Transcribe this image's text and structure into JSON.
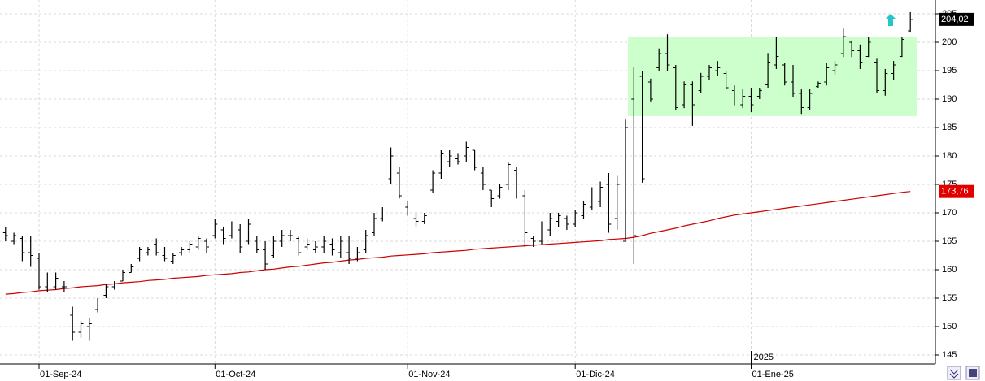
{
  "chart_data": {
    "type": "ohlc",
    "ylim": [
      143.43,
      207.43
    ],
    "yticks": [
      145,
      150,
      155,
      160,
      165,
      170,
      175,
      180,
      185,
      190,
      195,
      200,
      205
    ],
    "grid": true,
    "color": "#000000",
    "categories": [
      null,
      null,
      null,
      null,
      "01-Sep-24",
      null,
      null,
      null,
      null,
      null,
      null,
      null,
      null,
      null,
      null,
      null,
      null,
      null,
      null,
      null,
      null,
      null,
      null,
      null,
      null,
      "01-Oct-24",
      null,
      null,
      null,
      null,
      null,
      null,
      null,
      null,
      null,
      null,
      null,
      null,
      null,
      null,
      null,
      null,
      null,
      null,
      null,
      null,
      null,
      null,
      "01-Nov-24",
      null,
      null,
      null,
      null,
      null,
      null,
      null,
      null,
      null,
      null,
      null,
      null,
      null,
      null,
      null,
      null,
      null,
      null,
      null,
      "01-Dic-24",
      null,
      null,
      null,
      null,
      null,
      null,
      null,
      null,
      null,
      null,
      null,
      null,
      null,
      null,
      null,
      null,
      null,
      null,
      null,
      null,
      "01-Ene-25",
      null,
      null,
      null,
      null,
      null,
      null,
      null,
      null,
      null,
      null,
      null,
      null,
      null,
      null,
      null,
      null,
      null,
      null,
      null
    ],
    "open": [
      166.5,
      165,
      165.5,
      163,
      162,
      157,
      157,
      157,
      152,
      149,
      150,
      153,
      155.5,
      157,
      158,
      159.5,
      162,
      163,
      164.5,
      162.5,
      161.5,
      163,
      163.5,
      164,
      165,
      166,
      167,
      166,
      167,
      165,
      165,
      163.5,
      162.5,
      165,
      166,
      165.5,
      164,
      163.5,
      164,
      164.5,
      163,
      163,
      162,
      163.5,
      166.5,
      169,
      176,
      177,
      171,
      169,
      168.5,
      174,
      177,
      179,
      179.5,
      180,
      181,
      177,
      174,
      173,
      175,
      177.5,
      173,
      165.5,
      165,
      167,
      168.5,
      169,
      168,
      169.5,
      171,
      172,
      175,
      169,
      165,
      190,
      194,
      193,
      195.5,
      198,
      195.5,
      189,
      192.5,
      191.5,
      194,
      195,
      194.5,
      191.5,
      189,
      190.5,
      190.5,
      192.5,
      196,
      196,
      193,
      191,
      188.5,
      192.2,
      193,
      195,
      198,
      200,
      198.5,
      197.5,
      196.5,
      191.5,
      194.5,
      197.5,
      202
    ],
    "high": [
      167.5,
      166.5,
      166,
      166,
      163,
      159.5,
      159.5,
      158,
      153.5,
      151,
      151.5,
      155,
      157.5,
      158,
      160,
      161,
      164,
      164,
      165.5,
      164,
      163,
      164,
      165,
      166,
      165.5,
      169,
      167.5,
      168.5,
      168,
      169,
      166,
      165,
      166,
      167,
      167,
      166,
      165.5,
      165,
      166,
      165.5,
      166,
      166,
      164,
      167,
      170,
      171,
      181.5,
      178,
      172,
      170,
      170,
      177.5,
      181,
      181,
      180.5,
      182.5,
      181,
      178,
      174,
      175,
      179,
      178,
      174,
      166,
      168.5,
      170,
      170,
      169.5,
      170.5,
      172,
      174.5,
      175.5,
      177,
      176.5,
      186.4,
      195.6,
      194.9,
      193.6,
      198.9,
      201.4,
      196,
      193.1,
      193.1,
      194.6,
      196,
      196.7,
      194.9,
      192.4,
      191.7,
      192,
      192,
      198.1,
      201,
      196.3,
      196,
      191.7,
      191.7,
      193.1,
      196.3,
      196.7,
      202.4,
      200.3,
      199.6,
      201,
      197.1,
      195.3,
      196.7,
      201,
      205.3
    ],
    "low": [
      165,
      164.5,
      161.5,
      160.5,
      156.5,
      156,
      156.5,
      156,
      147.5,
      148,
      147.5,
      152.5,
      155,
      156.5,
      158,
      159.5,
      161.5,
      162.5,
      162.5,
      161.5,
      161,
      162.5,
      163,
      163.5,
      163,
      165.5,
      164.5,
      165.5,
      163,
      164.5,
      163,
      160,
      162,
      164,
      165,
      162.5,
      163.5,
      163,
      163,
      162.5,
      162,
      161,
      161.5,
      163,
      166,
      168.5,
      175,
      172.5,
      169.5,
      167.5,
      168,
      173.5,
      176,
      178,
      178.5,
      179,
      177.5,
      174,
      171,
      172.5,
      174,
      172.5,
      164,
      164,
      164.5,
      166,
      167.5,
      167,
      167.5,
      169,
      170.5,
      171,
      166.5,
      167,
      164.9,
      161,
      175.3,
      189.6,
      194.9,
      194.9,
      188.1,
      188.4,
      185.3,
      191,
      193.4,
      194.1,
      191.7,
      188.9,
      188.4,
      187.7,
      190,
      192,
      195.3,
      192.4,
      190.3,
      187.4,
      188.1,
      192,
      192.4,
      194.3,
      197.4,
      197.4,
      195.3,
      197.4,
      191,
      190.6,
      193.4,
      197.4,
      201.7
    ],
    "close": [
      166,
      166,
      163,
      162.5,
      157,
      157.5,
      158.5,
      157,
      149,
      150.5,
      150.5,
      154.5,
      157,
      157.5,
      159.5,
      160.5,
      163.5,
      163.5,
      163,
      162,
      162.5,
      163.5,
      164.5,
      165.5,
      164,
      168,
      165.5,
      167.5,
      164,
      168,
      163.5,
      161,
      165,
      166,
      166,
      163,
      164.5,
      164,
      165,
      163.5,
      165,
      162,
      163,
      166,
      169,
      170.5,
      180,
      173,
      170.5,
      168.5,
      169.5,
      177,
      180.5,
      180,
      179,
      181.5,
      178,
      175,
      172.5,
      174.5,
      178.5,
      173.5,
      166.5,
      165,
      167.5,
      169,
      169.5,
      168,
      170,
      171.5,
      173.5,
      174.5,
      168,
      175,
      185,
      166,
      176,
      190,
      198,
      196,
      188.5,
      192.5,
      189,
      194,
      195.5,
      195.5,
      192,
      189.5,
      190.5,
      189,
      191.5,
      196.5,
      197.5,
      193,
      191,
      188.5,
      191,
      192.8,
      195.5,
      196,
      201,
      198.5,
      196.5,
      200,
      191.5,
      194.5,
      196,
      200.5,
      204.02
    ],
    "close_label": "204,02",
    "ma": {
      "color": "#cc0000",
      "value_label": "173,76",
      "values": [
        155.7,
        155.8,
        156.0,
        156.1,
        156.3,
        156.4,
        156.5,
        156.7,
        156.8,
        157.0,
        157.1,
        157.2,
        157.4,
        157.5,
        157.7,
        157.8,
        157.9,
        158.1,
        158.2,
        158.3,
        158.5,
        158.6,
        158.7,
        158.8,
        159.0,
        159.1,
        159.2,
        159.3,
        159.5,
        159.6,
        159.8,
        160.0,
        160.1,
        160.3,
        160.5,
        160.6,
        160.8,
        161.0,
        161.2,
        161.3,
        161.5,
        161.7,
        161.8,
        162.0,
        162.1,
        162.2,
        162.4,
        162.5,
        162.6,
        162.7,
        162.8,
        163.0,
        163.1,
        163.2,
        163.3,
        163.4,
        163.6,
        163.7,
        163.8,
        163.9,
        164.0,
        164.1,
        164.2,
        164.3,
        164.4,
        164.5,
        164.6,
        164.7,
        164.8,
        164.9,
        165.0,
        165.1,
        165.3,
        165.4,
        165.5,
        165.7,
        166.0,
        166.4,
        166.7,
        167.0,
        167.3,
        167.7,
        168.0,
        168.3,
        168.6,
        169.0,
        169.3,
        169.6,
        169.8,
        170.0,
        170.2,
        170.4,
        170.6,
        170.8,
        171.0,
        171.2,
        171.4,
        171.6,
        171.8,
        172.0,
        172.2,
        172.4,
        172.6,
        172.8,
        173.0,
        173.2,
        173.4,
        173.6,
        173.76
      ]
    },
    "highlight": {
      "ylim": [
        187,
        201
      ],
      "color": "#ccffcc"
    },
    "annotations": [
      {
        "text": "2025",
        "category": "01-Ene-25"
      }
    ]
  }
}
